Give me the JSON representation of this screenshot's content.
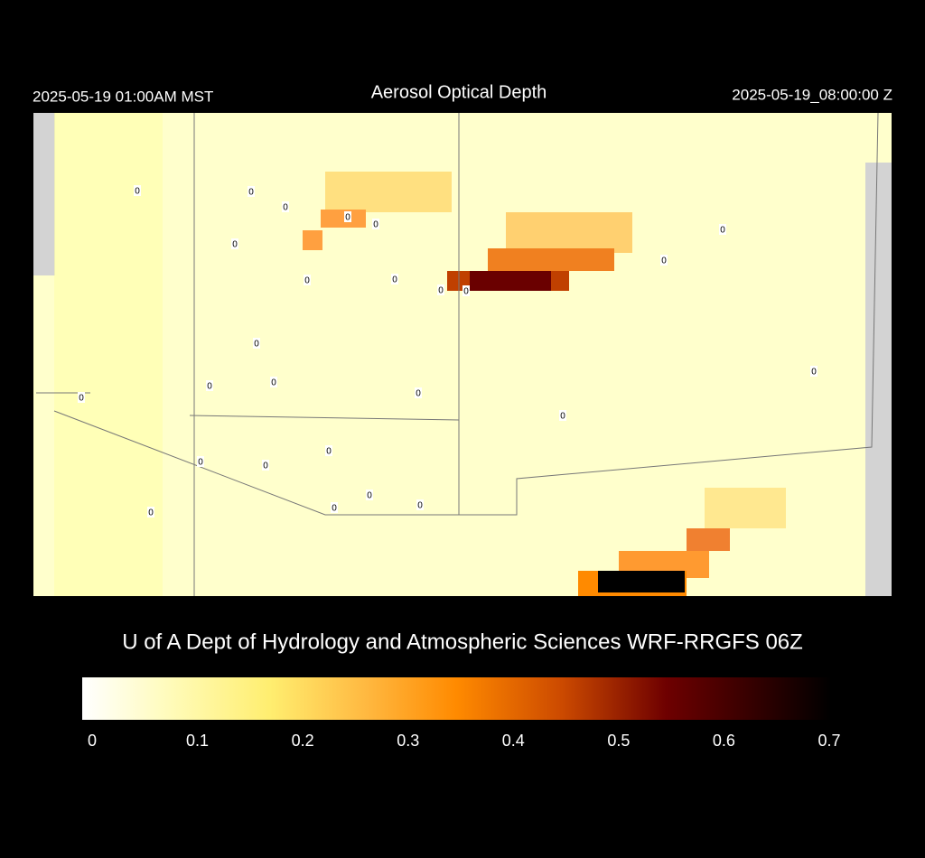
{
  "title": "Aerosol Optical Depth",
  "valid_local": "2025-05-19 01:00AM MST",
  "valid_utc": "2025-05-19_08:00:00 Z",
  "credit": "U of A Dept of Hydrology and Atmospheric Sciences WRF-RRGFS 06Z",
  "stations": [
    0,
    0,
    0,
    0,
    0,
    0,
    0,
    0,
    0,
    0,
    0,
    0,
    0,
    0,
    0,
    0,
    0,
    0,
    0,
    0,
    0,
    0,
    0,
    0,
    0,
    0
  ],
  "colorbar": {
    "lim": [
      0,
      0.7
    ],
    "ticks": [
      0,
      0.1,
      0.2,
      0.3,
      0.4,
      0.5,
      0.6,
      0.7
    ]
  }
}
